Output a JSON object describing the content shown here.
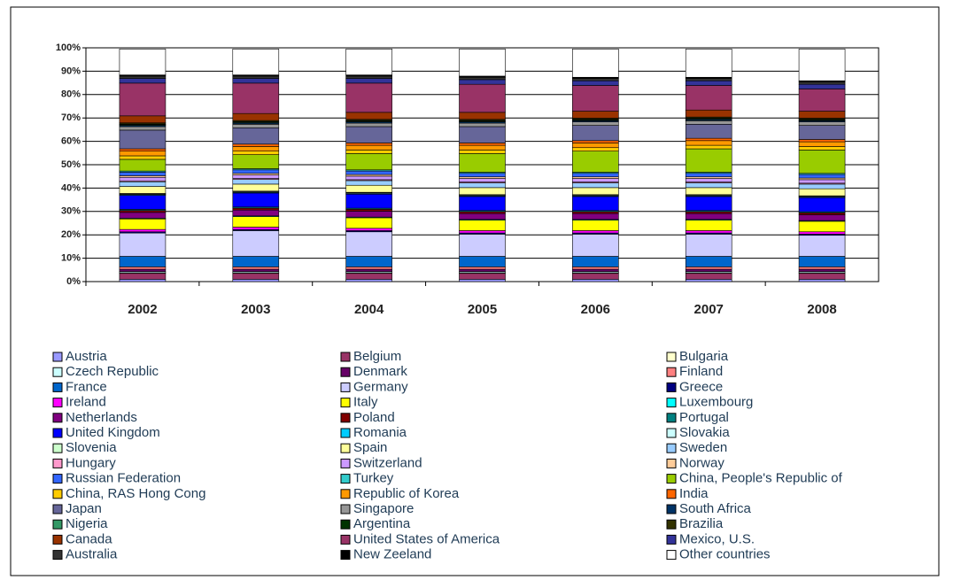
{
  "chart_data": {
    "type": "stacked_bar",
    "categories": [
      "2002",
      "2003",
      "2004",
      "2005",
      "2006",
      "2007",
      "2008"
    ],
    "ylim": [
      0,
      100
    ],
    "yticks": [
      {
        "value": 0,
        "label": "0%"
      },
      {
        "value": 10,
        "label": "10%"
      },
      {
        "value": 20,
        "label": "20%"
      },
      {
        "value": 30,
        "label": "30%"
      },
      {
        "value": 40,
        "label": "40%"
      },
      {
        "value": 50,
        "label": "50%"
      },
      {
        "value": 60,
        "label": "60%"
      },
      {
        "value": 70,
        "label": "70%"
      },
      {
        "value": 80,
        "label": "80%"
      },
      {
        "value": 90,
        "label": "90%"
      },
      {
        "value": 100,
        "label": "100%"
      }
    ],
    "grid": true,
    "series": [
      {
        "name": "Austria",
        "color": "#9999ff",
        "values": [
          1,
          1,
          1,
          1,
          1,
          1,
          1
        ]
      },
      {
        "name": "Belgium",
        "color": "#993366",
        "values": [
          2.5,
          2.5,
          2.5,
          2.5,
          2.5,
          2.5,
          2.5
        ]
      },
      {
        "name": "Bulgaria",
        "color": "#ffffcc",
        "values": [
          0.3,
          0.3,
          0.3,
          0.3,
          0.3,
          0.3,
          0.3
        ]
      },
      {
        "name": "Czech Republic",
        "color": "#ccffff",
        "values": [
          0.5,
          0.5,
          0.5,
          0.5,
          0.5,
          0.5,
          0.5
        ]
      },
      {
        "name": "Denmark",
        "color": "#660066",
        "values": [
          1,
          1,
          1,
          1,
          1,
          1,
          1
        ]
      },
      {
        "name": "Finland",
        "color": "#ff8080",
        "values": [
          1,
          1,
          1,
          1,
          1,
          1,
          1
        ]
      },
      {
        "name": "France",
        "color": "#0066cc",
        "values": [
          4.5,
          4.5,
          4.5,
          4.5,
          4.5,
          4.5,
          4.5
        ]
      },
      {
        "name": "Germany",
        "color": "#ccccff",
        "values": [
          10,
          11,
          10.5,
          9.5,
          9.5,
          9.5,
          9
        ]
      },
      {
        "name": "Greece",
        "color": "#000080",
        "values": [
          0.5,
          0.5,
          0.5,
          0.5,
          0.5,
          0.5,
          0.5
        ]
      },
      {
        "name": "Ireland",
        "color": "#ff00ff",
        "values": [
          1,
          1,
          1,
          1,
          1,
          1,
          1
        ]
      },
      {
        "name": "Italy",
        "color": "#ffff00",
        "values": [
          4.5,
          4.5,
          4.5,
          4.5,
          4.5,
          4.5,
          4.5
        ]
      },
      {
        "name": "Luxembourg",
        "color": "#00ffff",
        "values": [
          0.3,
          0.3,
          0.3,
          0.3,
          0.3,
          0.3,
          0.3
        ]
      },
      {
        "name": "Netherlands",
        "color": "#800080",
        "values": [
          2.5,
          2.5,
          2.5,
          2.5,
          2.5,
          2.5,
          2.5
        ]
      },
      {
        "name": "Poland",
        "color": "#800000",
        "values": [
          0.8,
          0.8,
          0.8,
          0.8,
          0.8,
          0.8,
          0.8
        ]
      },
      {
        "name": "Portugal",
        "color": "#008080",
        "values": [
          0.5,
          0.5,
          0.5,
          0.5,
          0.5,
          0.5,
          0.5
        ]
      },
      {
        "name": "United Kingdom",
        "color": "#0000ff",
        "values": [
          6,
          6,
          6,
          6,
          6,
          6,
          6
        ]
      },
      {
        "name": "Romania",
        "color": "#00ccff",
        "values": [
          0.3,
          0.3,
          0.3,
          0.3,
          0.3,
          0.3,
          0.3
        ]
      },
      {
        "name": "Slovakia",
        "color": "#ccffff",
        "values": [
          0.3,
          0.3,
          0.3,
          0.3,
          0.3,
          0.3,
          0.3
        ]
      },
      {
        "name": "Slovenia",
        "color": "#ccffcc",
        "values": [
          0.2,
          0.2,
          0.2,
          0.2,
          0.2,
          0.2,
          0.2
        ]
      },
      {
        "name": "Spain",
        "color": "#ffff99",
        "values": [
          3,
          3,
          3,
          3,
          3,
          3,
          3
        ]
      },
      {
        "name": "Sweden",
        "color": "#99ccff",
        "values": [
          2,
          2,
          2,
          2,
          2,
          2,
          2
        ]
      },
      {
        "name": "Hungary",
        "color": "#ff99cc",
        "values": [
          0.4,
          0.4,
          0.4,
          0.4,
          0.4,
          0.4,
          0.4
        ]
      },
      {
        "name": "Switzerland",
        "color": "#cc99ff",
        "values": [
          1.5,
          1.5,
          1.5,
          1.5,
          1.5,
          1.5,
          1.5
        ]
      },
      {
        "name": "Norway",
        "color": "#ffcc99",
        "values": [
          0.7,
          0.7,
          0.7,
          0.7,
          0.7,
          0.7,
          0.7
        ]
      },
      {
        "name": "Russian Federation",
        "color": "#3366ff",
        "values": [
          1.5,
          1.5,
          1.5,
          1.5,
          1.5,
          1.5,
          1.5
        ]
      },
      {
        "name": "Turkey",
        "color": "#33cccc",
        "values": [
          0.5,
          0.5,
          0.5,
          0.5,
          0.5,
          0.5,
          0.5
        ]
      },
      {
        "name": "China, People's Republic of",
        "color": "#99cc00",
        "values": [
          5,
          6,
          7,
          8,
          9,
          10,
          10
        ]
      },
      {
        "name": "China, RAS Hong Cong",
        "color": "#ffcc00",
        "values": [
          1.5,
          1.5,
          1.5,
          1.5,
          1.5,
          1.5,
          1.5
        ]
      },
      {
        "name": "Republic of Korea",
        "color": "#ff9900",
        "values": [
          2,
          2,
          2,
          2,
          2,
          2,
          2
        ]
      },
      {
        "name": "India",
        "color": "#ff6600",
        "values": [
          1,
          1,
          1,
          1,
          1,
          1,
          1
        ]
      },
      {
        "name": "Japan",
        "color": "#666699",
        "values": [
          8,
          7,
          7,
          7,
          6.5,
          6,
          6
        ]
      },
      {
        "name": "Singapore",
        "color": "#969696",
        "values": [
          1.5,
          1.5,
          1.5,
          1.5,
          1.5,
          1.5,
          1.5
        ]
      },
      {
        "name": "South Africa",
        "color": "#003366",
        "values": [
          0.5,
          0.5,
          0.5,
          0.5,
          0.5,
          0.5,
          0.5
        ]
      },
      {
        "name": "Nigeria",
        "color": "#339966",
        "values": [
          0.3,
          0.3,
          0.3,
          0.3,
          0.3,
          0.3,
          0.3
        ]
      },
      {
        "name": "Argentina",
        "color": "#003300",
        "values": [
          0.3,
          0.3,
          0.3,
          0.3,
          0.3,
          0.3,
          0.3
        ]
      },
      {
        "name": "Brazilia",
        "color": "#333300",
        "values": [
          0.5,
          0.5,
          0.5,
          0.5,
          0.5,
          0.5,
          0.5
        ]
      },
      {
        "name": "Canada",
        "color": "#993300",
        "values": [
          3,
          3,
          3,
          3,
          3,
          3,
          3
        ]
      },
      {
        "name": "United States of  America",
        "color": "#993366",
        "values": [
          14,
          13,
          12.5,
          12,
          11,
          10.5,
          9.5
        ]
      },
      {
        "name": "Mexico, U.S.",
        "color": "#333399",
        "values": [
          2,
          2,
          2,
          2,
          2,
          2,
          2
        ]
      },
      {
        "name": "Australia",
        "color": "#333333",
        "values": [
          1,
          1,
          1,
          1,
          1,
          1,
          1
        ]
      },
      {
        "name": "New Zeeland",
        "color": "#000000",
        "values": [
          0.5,
          0.5,
          0.5,
          0.5,
          0.5,
          0.5,
          0.5
        ]
      },
      {
        "name": "Other countries",
        "color": "#ffffff",
        "values": [
          11.1,
          11.1,
          11.1,
          11.6,
          12.1,
          12.1,
          13.6
        ]
      }
    ]
  }
}
